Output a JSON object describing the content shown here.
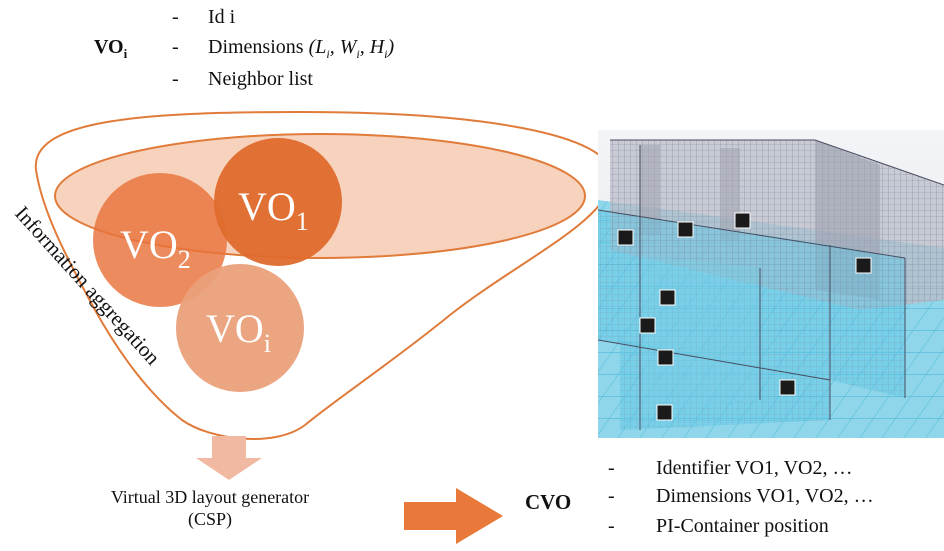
{
  "vo_block": {
    "label": "VO",
    "label_sub": "i",
    "items": [
      {
        "dash": "-",
        "text": "Id i"
      },
      {
        "dash": "-",
        "text": "Dimensions",
        "formula_parts": [
          "(L",
          "i",
          ", W",
          "i",
          ", H",
          "i",
          ")"
        ]
      },
      {
        "dash": "-",
        "text": "Neighbor list"
      }
    ]
  },
  "funnel": {
    "side_label": "Information aggregation",
    "circles": [
      {
        "name": "VO",
        "sub": "2",
        "color": "#e8733a"
      },
      {
        "name": "VO",
        "sub": "1",
        "color": "#e06a2a"
      },
      {
        "name": "VO",
        "sub": "i",
        "color": "#eba07a"
      }
    ],
    "outline_color": "#e07b3a"
  },
  "generator": {
    "title": "Virtual 3D layout generator",
    "subtitle": "(CSP)"
  },
  "cvo_block": {
    "label": "CVO",
    "items": [
      {
        "dash": "-",
        "text": "Identifier VO1, VO2, …"
      },
      {
        "dash": "-",
        "text": "Dimensions VO1, VO2, …"
      },
      {
        "dash": "-",
        "text": "PI-Container position"
      }
    ]
  },
  "colors": {
    "arrow_down": "#f2b9a2",
    "arrow_right": "#e8793a",
    "grid_blue": "#5cc8e6"
  }
}
